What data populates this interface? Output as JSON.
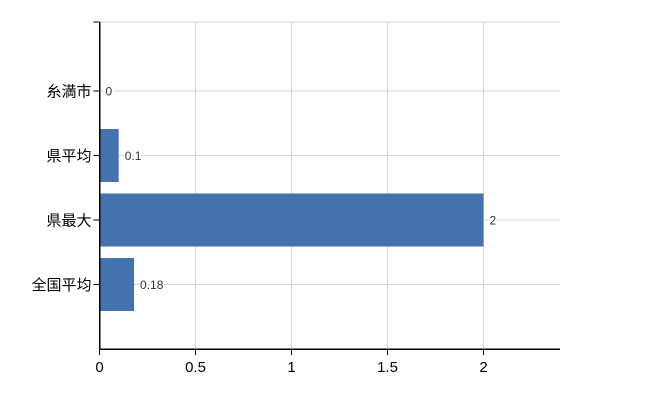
{
  "chart_data": {
    "type": "bar",
    "orientation": "horizontal",
    "title": "",
    "xlabel": "",
    "ylabel": "",
    "categories": [
      "糸満市",
      "県平均",
      "県最大",
      "全国平均"
    ],
    "values": [
      0,
      0.1,
      2,
      0.18
    ],
    "value_labels": [
      "0",
      "0.1",
      "2",
      "0.18"
    ],
    "xlim": [
      0,
      2.4
    ],
    "x_ticks": [
      0,
      0.5,
      1,
      1.5,
      2
    ],
    "x_tick_labels": [
      "0",
      "0.5",
      "1",
      "1.5",
      "2"
    ],
    "grid": true,
    "legend": false,
    "colors": {
      "bar": "#4372ad",
      "grid": "#d5d5d5",
      "axis": "#000000",
      "tick_label": "#000000",
      "category_label": "#000000",
      "value_label": "#333333",
      "background": "#ffffff"
    }
  }
}
